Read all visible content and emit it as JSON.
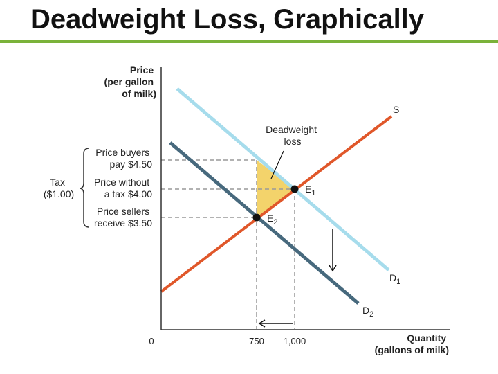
{
  "slide": {
    "title": "Deadweight Loss, Graphically",
    "accent_color": "#7ab23a"
  },
  "diagram": {
    "y_axis_label": [
      "Price",
      "(per gallon",
      "of milk)"
    ],
    "x_axis_label": [
      "Quantity",
      "(gallons of milk)"
    ],
    "origin_label": "0",
    "x_ticks": [
      "750",
      "1,000"
    ],
    "price_labels": {
      "buyers": [
        "Price buyers",
        "pay $4.50"
      ],
      "without_tax": [
        "Price without",
        "a tax $4.00"
      ],
      "sellers": [
        "Price sellers",
        "receive $3.50"
      ]
    },
    "tax_label": [
      "Tax",
      "($1.00)"
    ],
    "curve_labels": {
      "supply": "S",
      "d1": "D",
      "d1_sub": "1",
      "d2": "D",
      "d2_sub": "2"
    },
    "point_labels": {
      "e1": "E",
      "e1_sub": "1",
      "e2": "E",
      "e2_sub": "2"
    },
    "deadweight_label": [
      "Deadweight",
      "loss"
    ],
    "colors": {
      "supply": "#e0572a",
      "demand_original": "#a6dcec",
      "demand_shifted": "#47697d",
      "deadweight_fill": "#f3d36b"
    }
  }
}
